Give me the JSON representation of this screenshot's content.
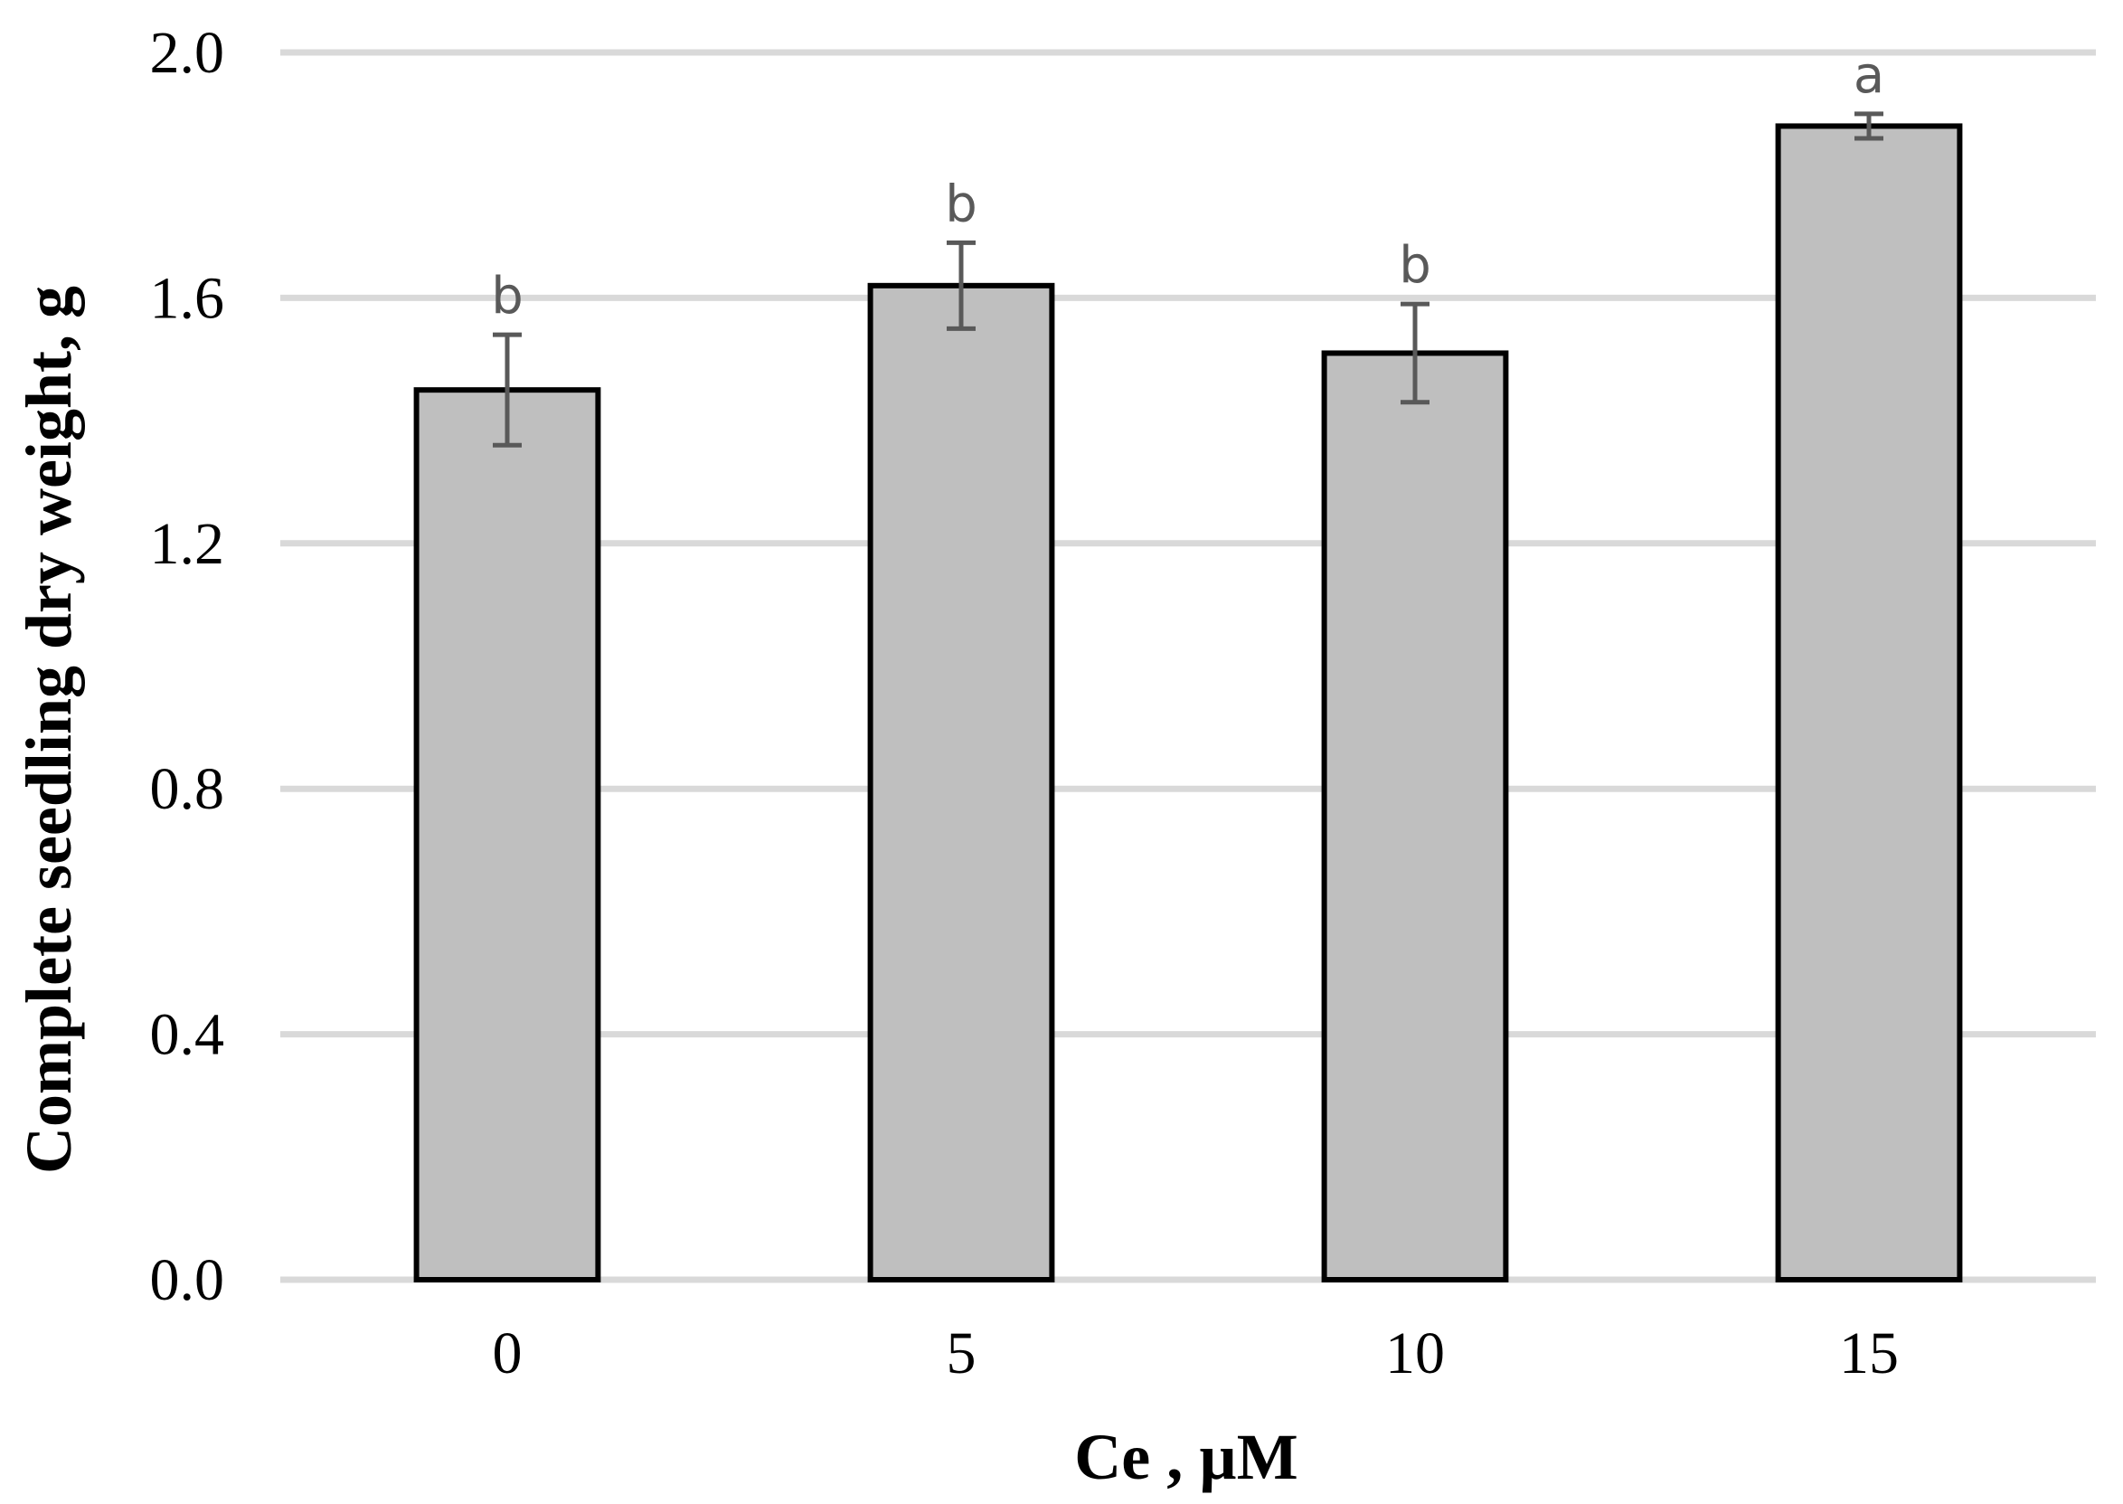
{
  "chart_data": {
    "type": "bar",
    "title": "",
    "xlabel": "Ce , µM",
    "ylabel": "Complete seedling dry weight, g",
    "categories": [
      "0",
      "5",
      "10",
      "15"
    ],
    "series": [
      {
        "values": [
          1.45,
          1.62,
          1.51,
          1.88
        ],
        "error": [
          0.09,
          0.07,
          0.08,
          0.02
        ],
        "significance": [
          "b",
          "b",
          "b",
          "a"
        ]
      }
    ],
    "ylim": [
      0,
      2.0
    ],
    "yticks": [
      "0.0",
      "0.4",
      "0.8",
      "1.2",
      "1.6",
      "2.0"
    ],
    "grid": "horizontal",
    "legend": "none",
    "colors": {
      "bar_fill": "#bfbfbf",
      "bar_edge": "#000000",
      "error_bar": "#595959",
      "gridline": "#d9d9d9"
    }
  }
}
